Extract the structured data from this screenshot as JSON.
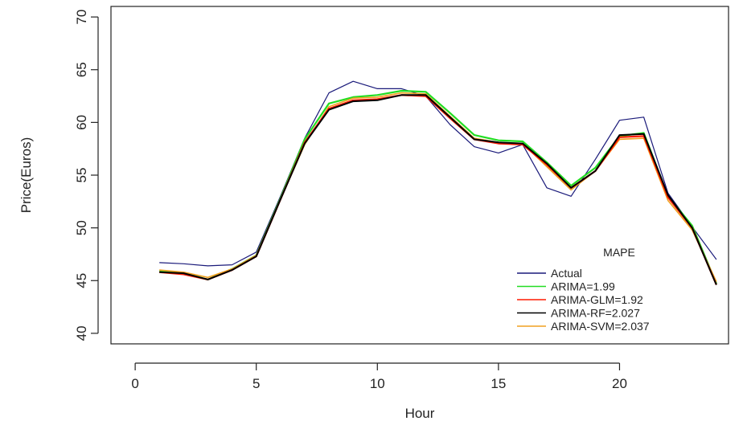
{
  "chart_data": {
    "type": "line",
    "title": "",
    "xlabel": "Hour",
    "ylabel": "Price(Euros)",
    "xlim": [
      -1,
      24.5
    ],
    "ylim": [
      39,
      71
    ],
    "xticks": [
      0,
      5,
      10,
      15,
      20
    ],
    "yticks": [
      40,
      45,
      50,
      55,
      60,
      65,
      70
    ],
    "grid": false,
    "legend": {
      "title": "MAPE",
      "position": "bottom-right"
    },
    "x": [
      1,
      2,
      3,
      4,
      5,
      6,
      7,
      8,
      9,
      10,
      11,
      12,
      13,
      14,
      15,
      16,
      17,
      18,
      19,
      20,
      21,
      22,
      23,
      24
    ],
    "series": [
      {
        "name": "Actual",
        "color": "#1a1a7a",
        "values": [
          46.7,
          46.6,
          46.4,
          46.5,
          47.7,
          53.0,
          58.5,
          62.8,
          63.9,
          63.2,
          63.2,
          62.5,
          59.8,
          57.7,
          57.1,
          57.9,
          53.8,
          53.0,
          56.5,
          60.2,
          60.5,
          53.3,
          50.1,
          47.0
        ]
      },
      {
        "name": "ARIMA=1.99",
        "color": "#22dd22",
        "values": [
          45.9,
          45.7,
          45.1,
          46.1,
          47.4,
          52.8,
          58.4,
          61.8,
          62.4,
          62.6,
          63.0,
          62.9,
          60.9,
          58.8,
          58.3,
          58.2,
          56.2,
          54.0,
          55.7,
          58.7,
          59.0,
          53.0,
          50.2,
          44.7
        ]
      },
      {
        "name": "ARIMA-GLM=1.92",
        "color": "#ff1a00",
        "values": [
          45.8,
          45.6,
          45.1,
          46.0,
          47.3,
          52.7,
          58.1,
          61.3,
          62.1,
          62.2,
          62.6,
          62.5,
          60.4,
          58.4,
          58.0,
          57.9,
          56.0,
          53.8,
          55.4,
          58.6,
          58.7,
          52.9,
          50.0,
          44.6
        ]
      },
      {
        "name": "ARIMA-RF=2.027",
        "color": "#000000",
        "values": [
          45.8,
          45.7,
          45.1,
          46.0,
          47.3,
          52.7,
          58.0,
          61.2,
          62.0,
          62.1,
          62.6,
          62.6,
          60.5,
          58.4,
          58.1,
          58.0,
          56.1,
          53.8,
          55.4,
          58.8,
          58.9,
          53.1,
          50.0,
          44.6
        ]
      },
      {
        "name": "ARIMA-SVM=2.037",
        "color": "#f0a020",
        "values": [
          46.0,
          45.8,
          45.3,
          46.1,
          47.4,
          52.7,
          57.9,
          61.5,
          62.3,
          62.4,
          62.8,
          62.7,
          60.6,
          58.5,
          58.1,
          58.0,
          55.8,
          53.6,
          55.4,
          58.4,
          58.5,
          52.6,
          49.8,
          44.9
        ]
      }
    ]
  }
}
